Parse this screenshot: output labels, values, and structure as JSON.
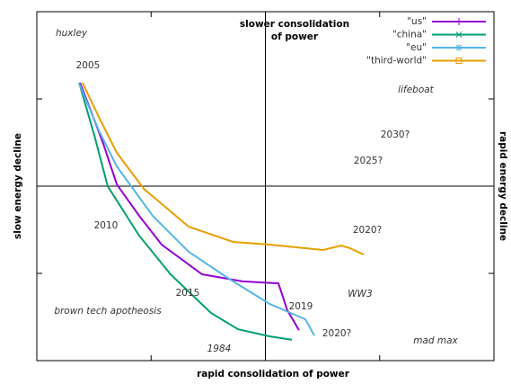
{
  "chart_data": {
    "type": "line",
    "xlabel": "rapid consolidation of power",
    "ylabel": "slow energy decline",
    "y2label": "rapid energy decline",
    "x2label": [
      "slower consolidation",
      "of power"
    ],
    "xlim": [
      -1,
      1
    ],
    "ylim": [
      -1,
      1
    ],
    "xticks": [
      -0.5,
      0,
      0.5
    ],
    "yticks": [
      -0.5,
      0,
      0.5
    ],
    "zeroaxis": true,
    "legend": "top-right",
    "series": [
      {
        "name": "\"us\"",
        "color": "#9400d3",
        "marker": "plus",
        "x": [
          -0.811,
          -0.768,
          -0.709,
          -0.65,
          -0.552,
          -0.454,
          -0.277,
          -0.1,
          0.057,
          0.096,
          0.147
        ],
        "values": [
          0.593,
          0.448,
          0.242,
          0.01,
          -0.17,
          -0.335,
          -0.505,
          -0.546,
          -0.557,
          -0.711,
          -0.825
        ]
      },
      {
        "name": "\"china\"",
        "color": "#009e73",
        "marker": "cross",
        "x": [
          -0.815,
          -0.749,
          -0.69,
          -0.552,
          -0.415,
          -0.238,
          -0.12,
          0.018,
          0.116
        ],
        "values": [
          0.593,
          0.294,
          0.0,
          -0.284,
          -0.505,
          -0.727,
          -0.82,
          -0.861,
          -0.881
        ]
      },
      {
        "name": "\"eu\"",
        "color": "#56b4e9",
        "marker": "star",
        "x": [
          -0.815,
          -0.729,
          -0.65,
          -0.493,
          -0.336,
          -0.159,
          0.018,
          0.175,
          0.214
        ],
        "values": [
          0.588,
          0.32,
          0.113,
          -0.17,
          -0.376,
          -0.531,
          -0.675,
          -0.763,
          -0.856
        ]
      },
      {
        "name": "\"third-world\"",
        "color": "#e69f00",
        "marker": "square",
        "x": [
          -0.8,
          -0.729,
          -0.65,
          -0.532,
          -0.336,
          -0.14,
          0.018,
          0.253,
          0.332,
          0.371,
          0.43
        ],
        "values": [
          0.593,
          0.397,
          0.191,
          -0.015,
          -0.232,
          -0.32,
          -0.335,
          -0.366,
          -0.34,
          -0.356,
          -0.392
        ]
      }
    ],
    "annotations": [
      "huxley",
      "2005",
      "lifeboat",
      "2030?",
      "2025?",
      "2010",
      "2020?",
      "2015",
      "WW3",
      "2019",
      "brown tech apotheosis",
      "2020?",
      "1984",
      "mad max"
    ]
  }
}
